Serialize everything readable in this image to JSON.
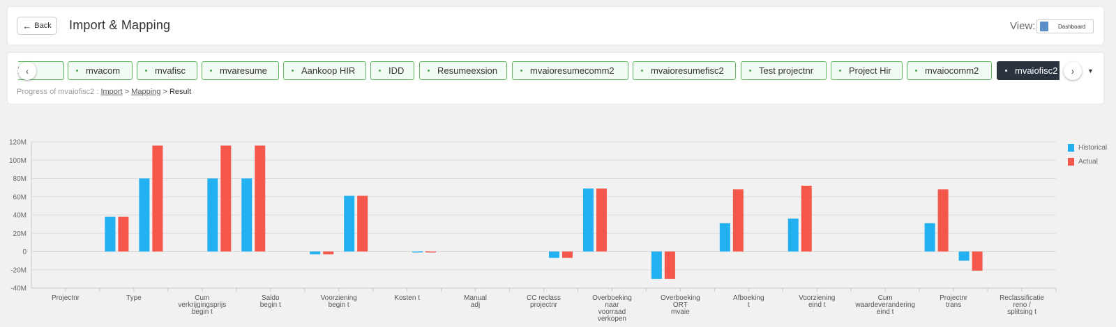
{
  "header": {
    "back_label": "Back",
    "title": "Import & Mapping",
    "view_label": "View:",
    "view_value": "Dashboard"
  },
  "tabs": {
    "items": [
      "GE",
      "mvacom",
      "mvafisc",
      "mvaresume",
      "Aankoop HIR",
      "IDD",
      "Resumeexsion",
      "mvaioresumecomm2",
      "mvaioresumefisc2",
      "Test projectnr",
      "Project Hir",
      "mvaiocomm2",
      "mvaiofisc2"
    ],
    "active_index": 12,
    "nav_left_icon": "‹",
    "nav_right_icon": "›",
    "dropdown_icon": "▼"
  },
  "progress": {
    "prefix": "Progress of mvaiofisc2 :",
    "import_label": "Import",
    "separator": ">",
    "mapping_label": "Mapping",
    "result_label": "Result"
  },
  "colors": {
    "historical": "#22b0f0",
    "actual": "#f5574a",
    "tab_border": "#5cb85c",
    "tab_active": "#2c3340"
  },
  "chart_data": {
    "type": "bar",
    "categories": [
      [
        "Projectnr"
      ],
      [
        "Type"
      ],
      [
        "Cum",
        "verkrijgingsprijs",
        "begin t"
      ],
      [
        "Saldo",
        "begin t"
      ],
      [
        "Voorziening",
        "begin t"
      ],
      [
        "Kosten t"
      ],
      [
        "Manual",
        "adj"
      ],
      [
        "CC reclass",
        "projectnr"
      ],
      [
        "Overboeking",
        "naar",
        "voorraad",
        "verkopen"
      ],
      [
        "Overboeking",
        "ORT",
        "mvaie"
      ],
      [
        "Afboeking",
        "t"
      ],
      [
        "Voorziening",
        "eind t"
      ],
      [
        "Cum",
        "waardeverandering",
        "eind t"
      ],
      [
        "Projectnr",
        "trans"
      ],
      [
        "Reclassificatie",
        "reno /",
        "splitsing t"
      ]
    ],
    "tick_labels": [
      "120M",
      "100M",
      "80M",
      "60M",
      "40M",
      "20M",
      "0",
      "-20M",
      "-40M"
    ],
    "ylim": [
      -40,
      120
    ],
    "series": [
      {
        "name": "Historical",
        "values": [
          0,
          0,
          38,
          80,
          0,
          -3,
          61,
          -1,
          0,
          -7,
          -30,
          31,
          36,
          0,
          31
        ]
      },
      {
        "name": "Actual",
        "values": [
          0,
          0,
          38,
          116,
          0,
          -3,
          61,
          -1,
          0,
          -7,
          -30,
          68,
          72,
          0,
          68
        ]
      }
    ],
    "bars": [
      {
        "slot": 3,
        "values": [
          38,
          38
        ]
      },
      {
        "slot": 4,
        "values": [
          80,
          116
        ]
      },
      {
        "slot": 6,
        "values": [
          80,
          116
        ]
      },
      {
        "slot": 7,
        "values": [
          80,
          116
        ]
      },
      {
        "slot": 9,
        "values": [
          -3,
          -3
        ]
      },
      {
        "slot": 10,
        "values": [
          61,
          61
        ]
      },
      {
        "slot": 12,
        "values": [
          -1,
          -1
        ]
      },
      {
        "slot": 16,
        "values": [
          -7,
          -7
        ]
      },
      {
        "slot": 17,
        "values": [
          69,
          69
        ]
      },
      {
        "slot": 19,
        "values": [
          -30,
          -30
        ]
      },
      {
        "slot": 21,
        "values": [
          31,
          68
        ]
      },
      {
        "slot": 23,
        "values": [
          36,
          72
        ]
      },
      {
        "slot": 27,
        "values": [
          31,
          68
        ]
      },
      {
        "slot": 28,
        "values": [
          -10,
          -21
        ]
      }
    ],
    "legend": [
      "Historical",
      "Actual"
    ],
    "legend_position": "top-right",
    "grid": true
  }
}
